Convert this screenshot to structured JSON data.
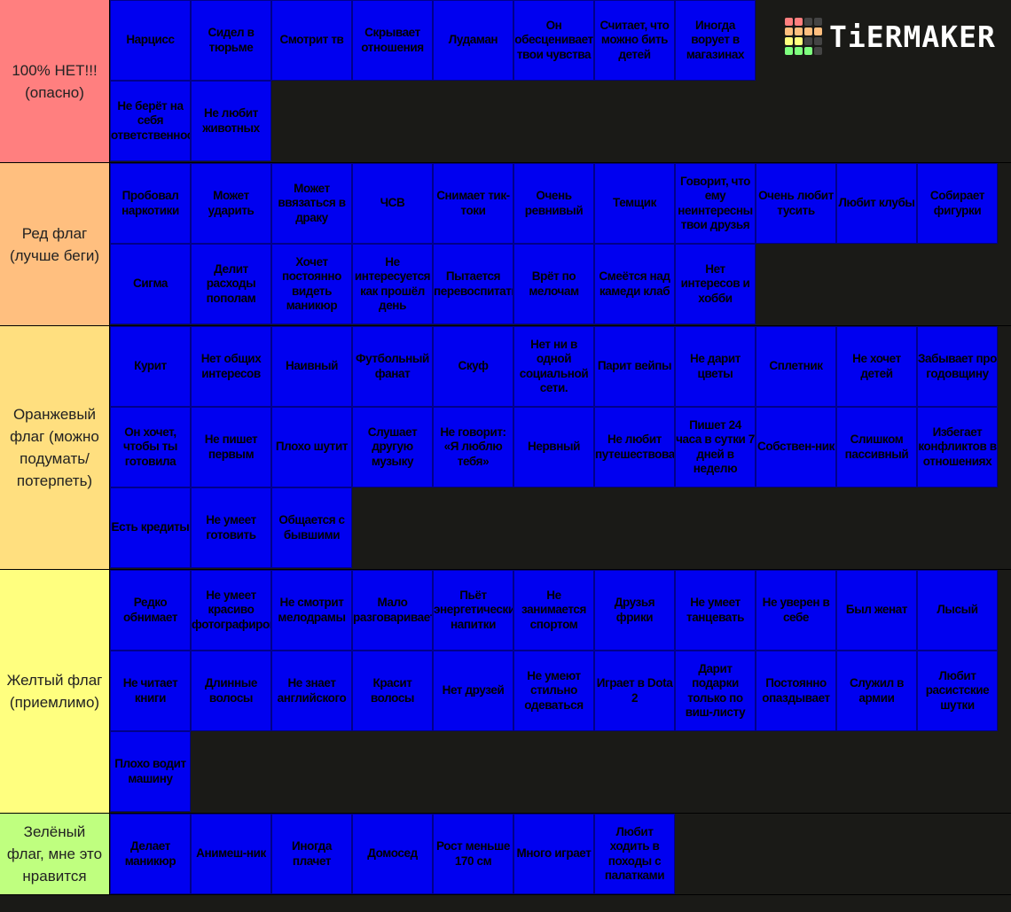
{
  "logo": {
    "text": "TiERMAKER",
    "grid_colors": [
      "#ff7f7f",
      "#ff7f7f",
      "#444444",
      "#444444",
      "#ffbf7f",
      "#ffbf7f",
      "#ffbf7f",
      "#ffbf7f",
      "#ffff7f",
      "#ffff7f",
      "#444444",
      "#444444",
      "#7fff7f",
      "#7fff7f",
      "#7fff7f",
      "#444444"
    ]
  },
  "colors": {
    "background": "#1a1a17",
    "tile": "#0000f0"
  },
  "tiers": [
    {
      "label": "100% НЕТ!!! (опасно)",
      "color": "#ff7f7f",
      "rows": 2,
      "items": [
        "Нарцисс",
        "Сидел в тюрьме",
        "Смотрит тв",
        "Скрывает отношения",
        "Лудаман",
        "Он обесценивает твои чувства",
        "Считает, что можно бить детей",
        "Иногда ворует в магазинах",
        "Не берёт на себя ответственность",
        "Не любит животных"
      ]
    },
    {
      "label": "Ред флаг (лучше беги)",
      "color": "#ffbf7f",
      "rows": 2,
      "items": [
        "Пробовал наркотики",
        "Может ударить",
        "Может ввязаться в драку",
        "ЧСВ",
        "Снимает тик-токи",
        "Очень ревнивый",
        "Темщик",
        "Говорит, что ему неинтересны твои друзья",
        "Очень любит тусить",
        "Любит клубы",
        "Собирает фигурки",
        "Сигма",
        "Делит расходы пополам",
        "Хочет постоянно видеть маникюр",
        "Не интересуется как прошёл день",
        "Пытается перевоспитать",
        "Врёт по мелочам",
        "Смеётся над камеди клаб",
        "Нет интересов и хобби"
      ]
    },
    {
      "label": "Оранжевый флаг (можно подумать/потерпеть)",
      "color": "#ffdf7f",
      "rows": 3,
      "items": [
        "Курит",
        "Нет общих интересов",
        "Наивный",
        "Футбольный фанат",
        "Скуф",
        "Нет ни в одной социальной сети.",
        "Парит вейпы",
        "Не дарит цветы",
        "Сплетник",
        "Не хочет детей",
        "Забывает про годовщину",
        "Он хочет, чтобы ты готовила",
        "Не пишет первым",
        "Плохо шутит",
        "Слушает другую музыку",
        "Не говорит: «Я люблю тебя»",
        "Нервный",
        "Не любит путешествовать",
        "Пишет 24 часа в сутки 7 дней в неделю",
        "Собствен-ник",
        "Слишком пассивный",
        "Избегает конфликтов в отношениях",
        "Есть кредиты",
        "Не умеет готовить",
        "Общается с бывшими"
      ]
    },
    {
      "label": "Желтый флаг (приемлимо)",
      "color": "#ffff7f",
      "rows": 3,
      "items": [
        "Редко обнимает",
        "Не умеет красиво фотографировать",
        "Не смотрит мелодрамы",
        "Мало разговаривает",
        "Пьёт энергетические напитки",
        "Не занимается спортом",
        "Друзья фрики",
        "Не умеет танцевать",
        "Не уверен в себе",
        "Был женат",
        "Лысый",
        "Не читает книги",
        "Длинные волосы",
        "Не знает английского",
        "Красит волосы",
        "Нет друзей",
        "Не умеют стильно одеваться",
        "Играет в Dota 2",
        "Дарит подарки только по виш-листу",
        "Постоянно опаздывает",
        "Служил в армии",
        "Любит расистские шутки",
        "Плохо водит машину"
      ]
    },
    {
      "label": "Зелёный флаг, мне это нравится",
      "color": "#bfff7f",
      "rows": 1,
      "items": [
        "Делает маникюр",
        "Анимеш-ник",
        "Иногда плачет",
        "Домосед",
        "Рост меньше 170 см",
        "Много играет",
        "Любит ходить в походы с палатками"
      ]
    }
  ]
}
